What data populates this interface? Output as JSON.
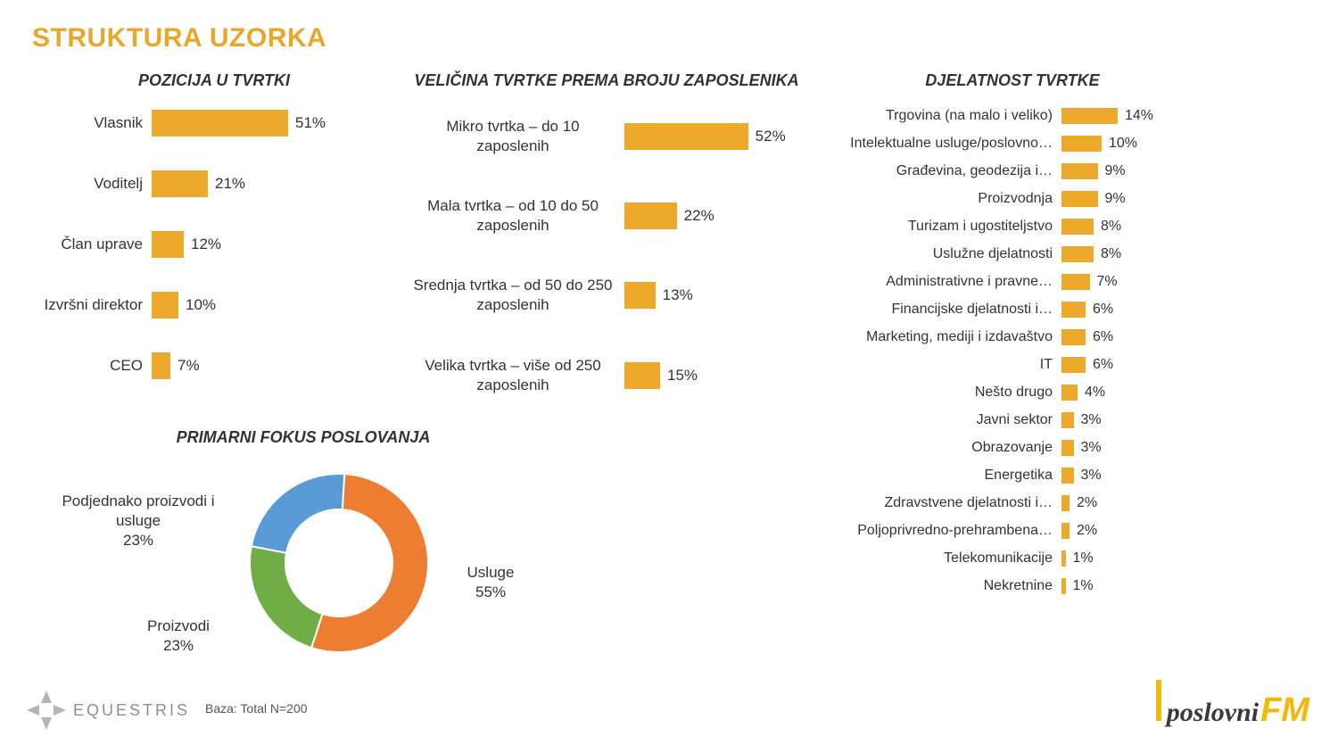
{
  "page_title": "STRUKTURA UZORKA",
  "colors": {
    "bar": "#eda92b",
    "bg": "#ffffff",
    "text": "#333333",
    "title": "#e9a72a"
  },
  "position_chart": {
    "title": "POZICIJA U TVRTKI",
    "type": "bar_horizontal",
    "bar_color": "#eda92b",
    "xlim": [
      0,
      60
    ],
    "label_fontsize": 17,
    "rows": [
      {
        "label": "Vlasnik",
        "value": 51,
        "display": "51%"
      },
      {
        "label": "Voditelj",
        "value": 21,
        "display": "21%"
      },
      {
        "label": "Član uprave",
        "value": 12,
        "display": "12%"
      },
      {
        "label": "Izvršni direktor",
        "value": 10,
        "display": "10%"
      },
      {
        "label": "CEO",
        "value": 7,
        "display": "7%"
      }
    ]
  },
  "size_chart": {
    "title": "VELIČINA TVRTKE PREMA BROJU ZAPOSLENIKA",
    "type": "bar_horizontal",
    "bar_color": "#eda92b",
    "xlim": [
      0,
      60
    ],
    "label_fontsize": 17,
    "rows": [
      {
        "label": "Mikro tvrtka – do 10 zaposlenih",
        "value": 52,
        "display": "52%"
      },
      {
        "label": "Mala tvrtka – od 10 do 50 zaposlenih",
        "value": 22,
        "display": "22%"
      },
      {
        "label": "Srednja tvrtka – od 50 do 250 zaposlenih",
        "value": 13,
        "display": "13%"
      },
      {
        "label": "Velika tvrtka – više od 250 zaposlenih",
        "value": 15,
        "display": "15%"
      }
    ]
  },
  "activity_chart": {
    "title": "DJELATNOST TVRTKE",
    "type": "bar_horizontal",
    "bar_color": "#eda92b",
    "xlim": [
      0,
      20
    ],
    "label_fontsize": 16,
    "rows": [
      {
        "label": "Trgovina (na malo i veliko)",
        "value": 14,
        "display": "14%"
      },
      {
        "label": "Intelektualne usluge/poslovno…",
        "value": 10,
        "display": "10%"
      },
      {
        "label": "Građevina, geodezija i…",
        "value": 9,
        "display": "9%"
      },
      {
        "label": "Proizvodnja",
        "value": 9,
        "display": "9%"
      },
      {
        "label": "Turizam i ugostiteljstvo",
        "value": 8,
        "display": "8%"
      },
      {
        "label": "Uslužne djelatnosti",
        "value": 8,
        "display": "8%"
      },
      {
        "label": "Administrativne i pravne…",
        "value": 7,
        "display": "7%"
      },
      {
        "label": "Financijske djelatnosti i…",
        "value": 6,
        "display": "6%"
      },
      {
        "label": "Marketing, mediji i izdavaštvo",
        "value": 6,
        "display": "6%"
      },
      {
        "label": "IT",
        "value": 6,
        "display": "6%"
      },
      {
        "label": "Nešto drugo",
        "value": 4,
        "display": "4%"
      },
      {
        "label": "Javni sektor",
        "value": 3,
        "display": "3%"
      },
      {
        "label": "Obrazovanje",
        "value": 3,
        "display": "3%"
      },
      {
        "label": "Energetika",
        "value": 3,
        "display": "3%"
      },
      {
        "label": "Zdravstvene djelatnosti i…",
        "value": 2,
        "display": "2%"
      },
      {
        "label": "Poljoprivredno-prehrambena…",
        "value": 2,
        "display": "2%"
      },
      {
        "label": "Telekomunikacije",
        "value": 1,
        "display": "1%"
      },
      {
        "label": "Nekretnine",
        "value": 1,
        "display": "1%"
      }
    ]
  },
  "focus_chart": {
    "title": "PRIMARNI FOKUS POSLOVANJA",
    "type": "donut",
    "inner_radius": 60,
    "outer_radius": 100,
    "stroke_color": "#ffffff",
    "slices": [
      {
        "label": "Usluge",
        "percent": 55,
        "display": "Usluge\n55%",
        "color": "#ed7d31"
      },
      {
        "label": "Proizvodi",
        "percent": 23,
        "display": "Proizvodi\n23%",
        "color": "#70ad47"
      },
      {
        "label": "Podjednako proizvodi i usluge",
        "percent": 23,
        "display": "Podjednako proizvodi i\nusluge\n23%",
        "color": "#5b9bd5"
      }
    ]
  },
  "base_note": "Baza: Total N=200",
  "logo_left": {
    "text": "EQUESTRIS"
  },
  "logo_right": {
    "text1": "poslovni",
    "text2": "FM"
  }
}
